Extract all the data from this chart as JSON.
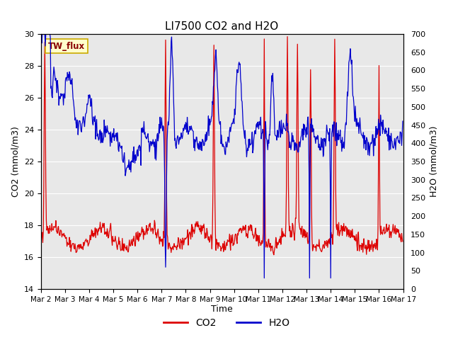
{
  "title": "LI7500 CO2 and H2O",
  "xlabel": "Time",
  "ylabel_left": "CO2 (mmol/m3)",
  "ylabel_right": "H2O (mmol/m3)",
  "ylim_left": [
    14,
    30
  ],
  "ylim_right": [
    0,
    700
  ],
  "yticks_left": [
    14,
    16,
    18,
    20,
    22,
    24,
    26,
    28,
    30
  ],
  "yticks_right": [
    0,
    50,
    100,
    150,
    200,
    250,
    300,
    350,
    400,
    450,
    500,
    550,
    600,
    650,
    700
  ],
  "fig_bg_color": "#ffffff",
  "plot_bg_color": "#e8e8e8",
  "annotation_text": "TW_flux",
  "annotation_facecolor": "#ffffcc",
  "annotation_edgecolor": "#ccaa00",
  "annotation_textcolor": "#880000",
  "legend_co2_color": "#dd0000",
  "legend_h2o_color": "#0000cc",
  "co2_color": "#dd0000",
  "h2o_color": "#0000cc",
  "grid_color": "#ffffff",
  "seed": 42
}
